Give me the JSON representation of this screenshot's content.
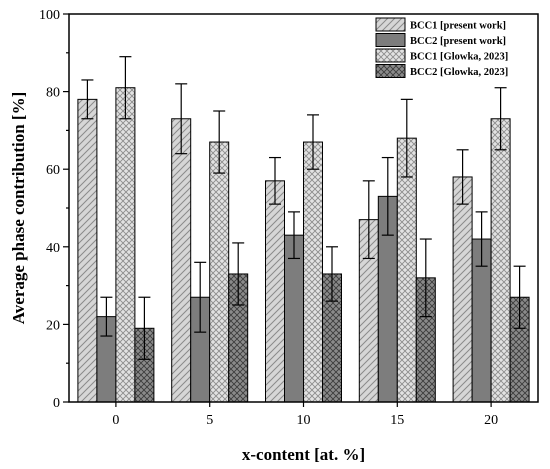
{
  "chart_data": {
    "type": "bar",
    "title": "",
    "xlabel": "x-content [at. %]",
    "ylabel": "Average phase contribution [%]",
    "categories": [
      "0",
      "5",
      "10",
      "15",
      "20"
    ],
    "ylim": [
      0,
      100
    ],
    "yticks": [
      0,
      20,
      40,
      60,
      80,
      100
    ],
    "grid": false,
    "legend_position": "top-right",
    "series": [
      {
        "name": "BCC1 [present work]",
        "values": [
          78,
          73,
          57,
          47,
          58
        ],
        "errors": [
          5,
          9,
          6,
          10,
          7
        ],
        "color": "#d4d4d4",
        "pattern": "diagonal-lines"
      },
      {
        "name": "BCC2 [present work]",
        "values": [
          22,
          27,
          43,
          53,
          42
        ],
        "errors": [
          5,
          9,
          6,
          10,
          7
        ],
        "color": "#7a7a7a",
        "pattern": "solid"
      },
      {
        "name": "BCC1 [Glowka, 2023]",
        "values": [
          81,
          67,
          67,
          68,
          73
        ],
        "errors": [
          8,
          8,
          7,
          10,
          8
        ],
        "color": "#d4d4d4",
        "pattern": "crosshatch"
      },
      {
        "name": "BCC2 [Glowka, 2023]",
        "values": [
          19,
          33,
          33,
          32,
          27
        ],
        "errors": [
          8,
          8,
          7,
          10,
          8
        ],
        "color": "#7a7a7a",
        "pattern": "crosshatch"
      }
    ]
  }
}
